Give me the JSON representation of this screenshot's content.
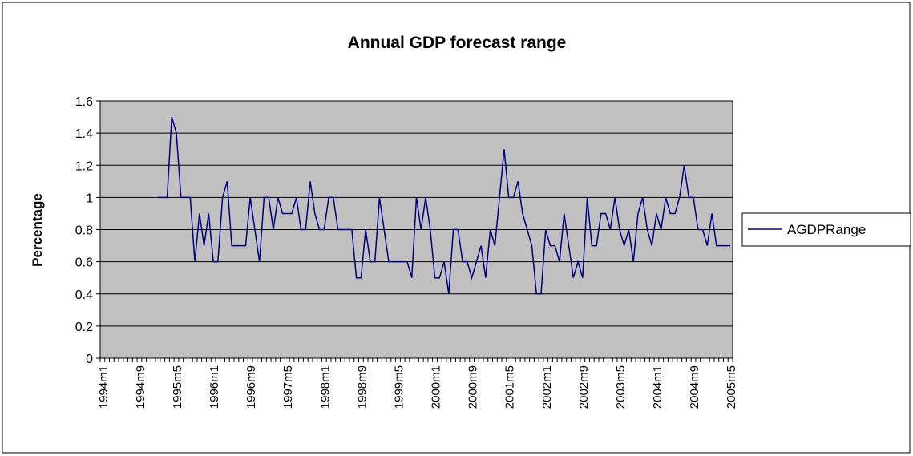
{
  "chart_data": {
    "type": "line",
    "title": "Annual GDP forecast range",
    "y_label": "Percentage",
    "categories": [
      "1994m1",
      null,
      null,
      null,
      null,
      null,
      null,
      null,
      "1994m9",
      null,
      null,
      null,
      null,
      null,
      null,
      null,
      "1995m5",
      null,
      null,
      null,
      null,
      null,
      null,
      null,
      "1996m1",
      null,
      null,
      null,
      null,
      null,
      null,
      null,
      "1996m9",
      null,
      null,
      null,
      null,
      null,
      null,
      null,
      "1997m5",
      null,
      null,
      null,
      null,
      null,
      null,
      null,
      "1998m1",
      null,
      null,
      null,
      null,
      null,
      null,
      null,
      "1998m9",
      null,
      null,
      null,
      null,
      null,
      null,
      null,
      "1999m5",
      null,
      null,
      null,
      null,
      null,
      null,
      null,
      "2000m1",
      null,
      null,
      null,
      null,
      null,
      null,
      null,
      "2000m9",
      null,
      null,
      null,
      null,
      null,
      null,
      null,
      "2001m5",
      null,
      null,
      null,
      null,
      null,
      null,
      null,
      "2002m1",
      null,
      null,
      null,
      null,
      null,
      null,
      null,
      "2002m9",
      null,
      null,
      null,
      null,
      null,
      null,
      null,
      "2003m5",
      null,
      null,
      null,
      null,
      null,
      null,
      null,
      "2004m1",
      null,
      null,
      null,
      null,
      null,
      null,
      null,
      "2004m9",
      null,
      null,
      null,
      null,
      null,
      null,
      null,
      "2005m5"
    ],
    "series": [
      {
        "name": "AGDPRange",
        "color": "#000080",
        "values": [
          null,
          null,
          null,
          null,
          null,
          null,
          null,
          null,
          null,
          null,
          null,
          null,
          1.0,
          1.0,
          1.0,
          1.5,
          1.4,
          1.0,
          1.0,
          1.0,
          0.6,
          0.9,
          0.7,
          0.9,
          0.6,
          0.6,
          1.0,
          1.1,
          0.7,
          0.7,
          0.7,
          0.7,
          1.0,
          0.8,
          0.6,
          1.0,
          1.0,
          0.8,
          1.0,
          0.9,
          0.9,
          0.9,
          1.0,
          0.8,
          0.8,
          1.1,
          0.9,
          0.8,
          0.8,
          1.0,
          1.0,
          0.8,
          0.8,
          0.8,
          0.8,
          0.5,
          0.5,
          0.8,
          0.6,
          0.6,
          1.0,
          0.8,
          0.6,
          0.6,
          0.6,
          0.6,
          0.6,
          0.5,
          1.0,
          0.8,
          1.0,
          0.8,
          0.5,
          0.5,
          0.6,
          0.4,
          0.8,
          0.8,
          0.6,
          0.6,
          0.5,
          0.6,
          0.7,
          0.5,
          0.8,
          0.7,
          1.0,
          1.3,
          1.0,
          1.0,
          1.1,
          0.9,
          0.8,
          0.7,
          0.4,
          0.4,
          0.8,
          0.7,
          0.7,
          0.6,
          0.9,
          0.7,
          0.5,
          0.6,
          0.5,
          1.0,
          0.7,
          0.7,
          0.9,
          0.9,
          0.8,
          1.0,
          0.8,
          0.7,
          0.8,
          0.6,
          0.9,
          1.0,
          0.8,
          0.7,
          0.9,
          0.8,
          1.0,
          0.9,
          0.9,
          1.0,
          1.2,
          1.0,
          1.0,
          0.8,
          0.8,
          0.7,
          0.9,
          0.7,
          0.7,
          0.7,
          0.7
        ]
      }
    ],
    "ylim": [
      0,
      1.6
    ],
    "yticks": [
      0,
      0.2,
      0.4,
      0.6,
      0.8,
      1,
      1.2,
      1.4,
      1.6
    ],
    "grid": true,
    "legend": "right",
    "plot_background": "#c0c0c0"
  }
}
